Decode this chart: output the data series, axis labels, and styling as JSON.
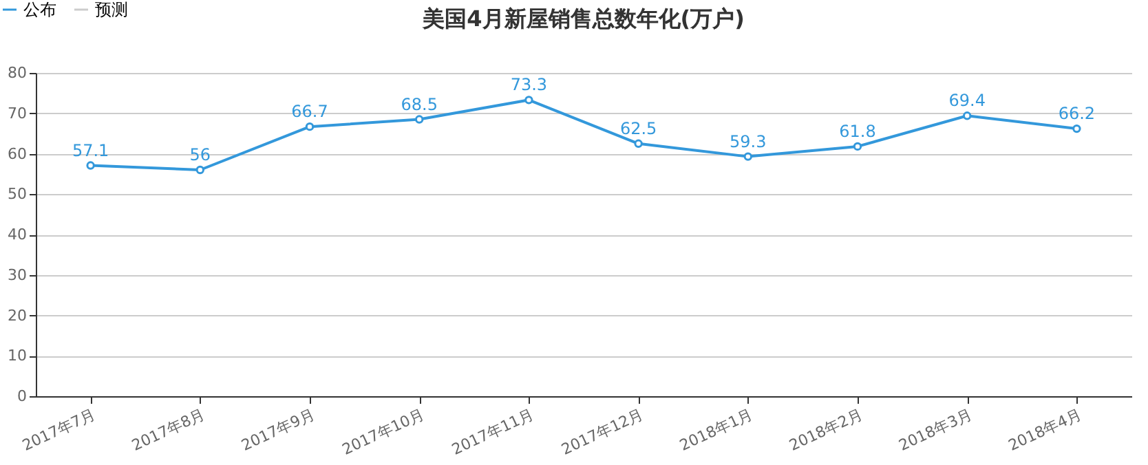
{
  "chart_data": {
    "type": "line",
    "title": "美国4月新屋销售总数年化(万户)",
    "categories": [
      "2017年7月",
      "2017年8月",
      "2017年9月",
      "2017年10月",
      "2017年11月",
      "2017年12月",
      "2018年1月",
      "2018年2月",
      "2018年3月",
      "2018年4月"
    ],
    "series": [
      {
        "name": "公布",
        "color": "#3398db",
        "values": [
          57.1,
          56,
          66.7,
          68.5,
          73.3,
          62.5,
          59.3,
          61.8,
          69.4,
          66.2
        ]
      },
      {
        "name": "预测",
        "color": "#cccccc",
        "values": [
          null,
          null,
          null,
          null,
          null,
          null,
          null,
          null,
          null,
          null
        ]
      }
    ],
    "ylim": [
      0,
      80
    ],
    "yticks": [
      0,
      10,
      20,
      30,
      40,
      50,
      60,
      70,
      80
    ],
    "grid": "y",
    "legend": "top left",
    "marker": "circle",
    "line_style": "solid",
    "data_labels": true
  }
}
